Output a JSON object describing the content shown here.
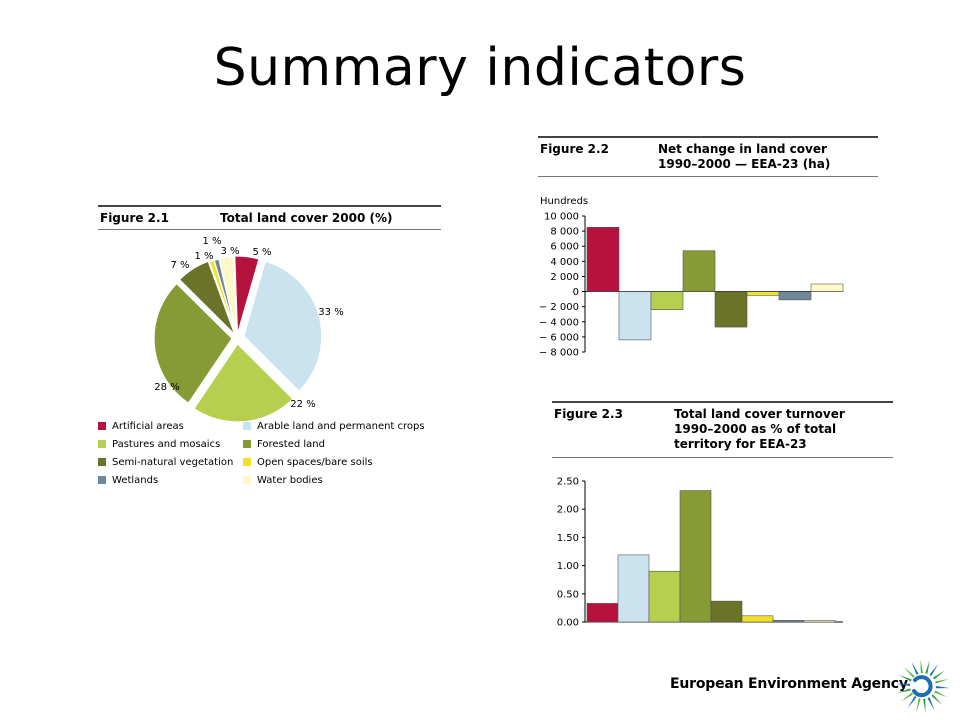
{
  "slide": {
    "title": "Summary indicators"
  },
  "footer": {
    "agency_name": "European Environment Agency",
    "logo_icon": "eea-logo-icon"
  },
  "colors": {
    "artificial": "#b5123d",
    "arable": "#cbe3ee",
    "pastures": "#b7cf4f",
    "forested": "#869a35",
    "seminatural": "#6a7328",
    "openspaces": "#f2e12a",
    "wetlands": "#6f8897",
    "water": "#fff8c8"
  },
  "chart_data": [
    {
      "type": "pie",
      "figure_label": "Figure 2.1",
      "title": "Total land cover 2000 (%)",
      "slices": [
        {
          "name": "Artificial areas",
          "value": 5,
          "label": "5 %",
          "color_key": "artificial"
        },
        {
          "name": "Arable land and permanent crops",
          "value": 33,
          "label": "33 %",
          "color_key": "arable"
        },
        {
          "name": "Pastures and mosaics",
          "value": 22,
          "label": "22 %",
          "color_key": "pastures"
        },
        {
          "name": "Forested land",
          "value": 28,
          "label": "28 %",
          "color_key": "forested"
        },
        {
          "name": "Semi-natural vegetation",
          "value": 7,
          "label": "7 %",
          "color_key": "seminatural"
        },
        {
          "name": "Open spaces/bare soils",
          "value": 1,
          "label": "1 %",
          "color_key": "openspaces"
        },
        {
          "name": "Wetlands",
          "value": 1,
          "label": "1 %",
          "color_key": "wetlands"
        },
        {
          "name": "Water bodies",
          "value": 3,
          "label": "3 %",
          "color_key": "water"
        }
      ],
      "legend_placement": "bottom"
    },
    {
      "type": "bar",
      "figure_label": "Figure 2.2",
      "title": "Net change in land cover 1990–2000 — EEA-23 (ha)",
      "title_lines": [
        "Net change in land cover",
        "1990–2000 — EEA-23 (ha)"
      ],
      "ylabel": "Hundreds",
      "ylim": [
        -8000,
        10000
      ],
      "yticks": [
        10000,
        8000,
        6000,
        4000,
        2000,
        0,
        -2000,
        -4000,
        -6000,
        -8000
      ],
      "ytick_labels": [
        "10 000",
        "8 000",
        "6 000",
        "4 000",
        "2 000",
        "0",
        "− 2 000",
        "− 4 000",
        "− 6 000",
        "− 8 000"
      ],
      "categories": [
        "Artificial areas",
        "Arable land and permanent crops",
        "Pastures and mosaics",
        "Forested land",
        "Semi-natural vegetation",
        "Open spaces/bare soils",
        "Wetlands",
        "Water bodies"
      ],
      "values": [
        8500,
        -6400,
        -2400,
        5400,
        -4700,
        -500,
        -1100,
        1000
      ],
      "grid": false
    },
    {
      "type": "bar",
      "figure_label": "Figure 2.3",
      "title": "Total land cover turnover 1990–2000 as % of total territory for EEA-23",
      "title_lines": [
        "Total land cover turnover",
        "1990–2000 as % of total",
        "territory for EEA-23"
      ],
      "ylim": [
        0,
        2.5
      ],
      "yticks": [
        2.5,
        2.0,
        1.5,
        1.0,
        0.5,
        0.0
      ],
      "ytick_labels": [
        "2.50",
        "2.00",
        "1.50",
        "1.00",
        "0.50",
        "0.00"
      ],
      "categories": [
        "Artificial areas",
        "Arable land and permanent crops",
        "Pastures and mosaics",
        "Forested land",
        "Semi-natural vegetation",
        "Open spaces/bare soils",
        "Wetlands",
        "Water bodies"
      ],
      "values": [
        0.33,
        1.19,
        0.9,
        2.33,
        0.37,
        0.11,
        0.03,
        0.03
      ],
      "grid": false
    }
  ]
}
